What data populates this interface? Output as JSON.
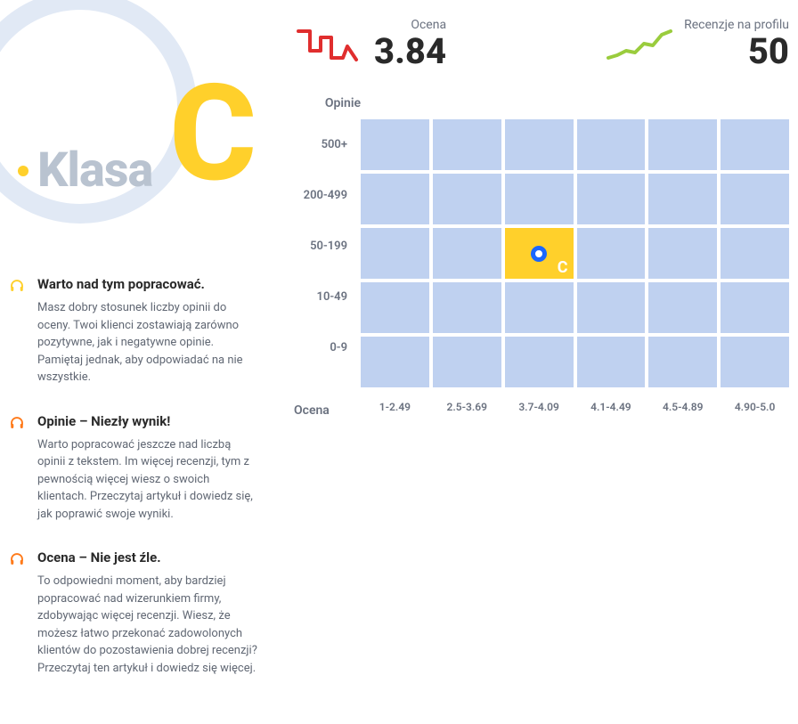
{
  "grade": {
    "klasa_label": "Klasa",
    "letter": "C",
    "letter_color": "#ffd02b",
    "circle_color": "#e1e9f5"
  },
  "stats": {
    "score": {
      "label": "Ocena",
      "value": "3.84",
      "spark_color": "#e02e2e"
    },
    "reviews": {
      "label": "Recenzje na profilu",
      "value": "50",
      "spark_color": "#9acc3d"
    }
  },
  "tips": [
    {
      "icon_color": "#ffd02b",
      "title": "Warto nad tym popracować.",
      "body": "Masz dobry stosunek liczby opinii do oceny. Twoi klienci zostawiają zarówno pozytywne, jak i negatywne opinie. Pamiętaj jednak, aby odpowiadać na nie wszystkie."
    },
    {
      "icon_color": "#ff7a1a",
      "title": "Opinie – Niezły wynik!",
      "body": "Warto popracować jeszcze nad liczbą opinii z tekstem. Im więcej recenzji, tym z pewnością więcej wiesz o swoich klientach. Przeczytaj artykuł i dowiedz się, jak poprawić swoje wyniki."
    },
    {
      "icon_color": "#ff7a1a",
      "title": "Ocena – Nie jest źle.",
      "body": "To odpowiedni moment, aby bardziej popracować nad wizerunkiem firmy, zdobywając więcej recenzji. Wiesz, że możesz łatwo przekonać zadowolonych klientów do pozostawienia dobrej recenzji? Przeczytaj ten artykuł i dowiedz się więcej."
    }
  ],
  "heatmap": {
    "y_title": "Opinie",
    "x_title": "Ocena",
    "y_labels": [
      "500+",
      "200-499",
      "50-199",
      "10-49",
      "0-9"
    ],
    "x_labels": [
      "1-2.49",
      "2.5-3.69",
      "3.7-4.09",
      "4.1-4.49",
      "4.5-4.89",
      "4.90-5.0"
    ],
    "cell_color": "#bfd1f0",
    "highlight_color": "#ffd02b",
    "highlight_row": 2,
    "highlight_col": 2,
    "highlight_letter": "C",
    "marker_ring": "#1a66ff"
  }
}
